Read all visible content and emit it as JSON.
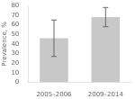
{
  "chart_data": {
    "type": "bar",
    "categories": [
      "2005–2006",
      "2009–2014"
    ],
    "values": [
      46,
      68
    ],
    "yerr_lower": [
      19,
      10
    ],
    "yerr_upper": [
      19,
      10
    ],
    "color": "#c8c8c8",
    "ylabel": "Prevalence, %",
    "ylim": [
      0,
      80
    ],
    "yticks": [
      0,
      10,
      20,
      30,
      40,
      50,
      60,
      70,
      80
    ],
    "grid": false
  }
}
